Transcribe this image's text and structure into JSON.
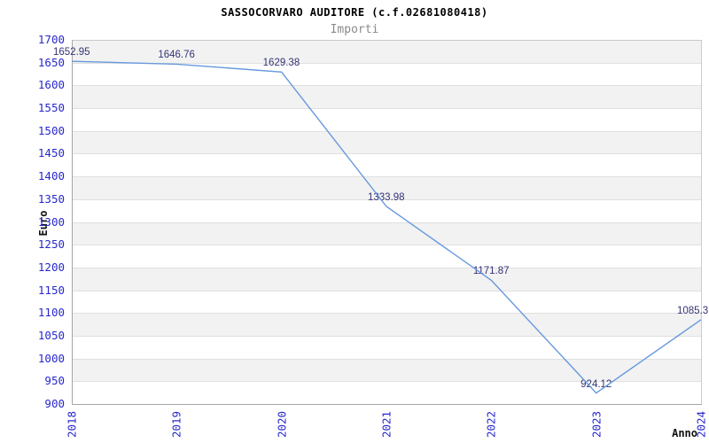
{
  "header": {
    "title": "SASSOCORVARO AUDITORE (c.f.02681080418)",
    "subtitle": "Importi"
  },
  "chart_data": {
    "type": "line",
    "title": "SASSOCORVARO AUDITORE (c.f.02681080418)",
    "subtitle": "Importi",
    "xlabel": "Anno",
    "ylabel": "Euro",
    "x_categories": [
      "2018",
      "2019",
      "2020",
      "2021",
      "2022",
      "2023",
      "2024"
    ],
    "series": [
      {
        "name": "Importi",
        "values": [
          1652.95,
          1646.76,
          1629.38,
          1333.98,
          1171.87,
          924.12,
          1085.3
        ]
      }
    ],
    "point_labels": [
      "1652.95",
      "1646.76",
      "1629.38",
      "1333.98",
      "1171.87",
      "924.12",
      "1085.3"
    ],
    "ylim": [
      900,
      1700
    ],
    "ytick_step": 50,
    "grid": "horizontal",
    "bands": "alternating-gray-from-top",
    "legend_position": "none"
  },
  "colors": {
    "background": "#ffffff",
    "band_gray": "#f2f2f2",
    "gridline": "#e0e0e0",
    "axis": "#a6a6a6",
    "border_light": "#cccccc",
    "tick_label": "#2828cc",
    "point_label": "#333375",
    "line": "#6699dd",
    "title": "#000000",
    "subtitle": "#8a8a8a",
    "axis_title": "#111111"
  }
}
